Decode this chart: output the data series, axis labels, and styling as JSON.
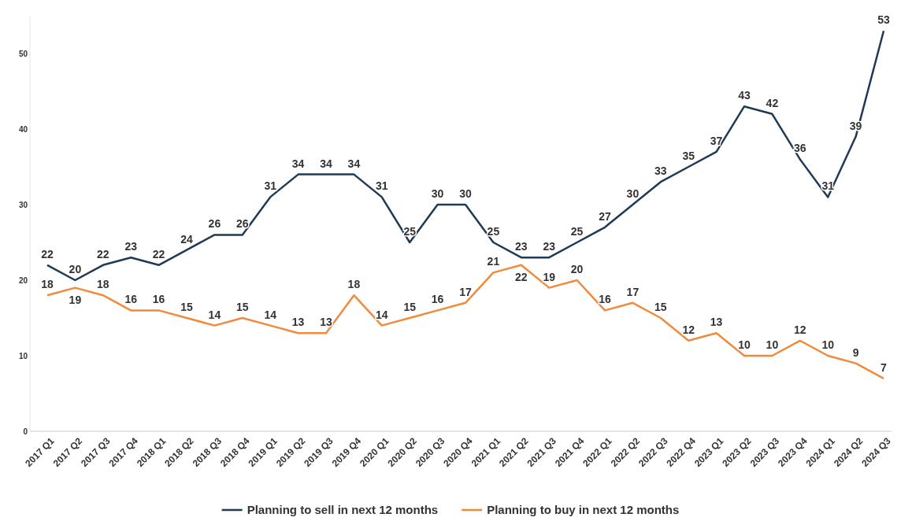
{
  "chart_data": {
    "type": "line",
    "categories": [
      "2017 Q1",
      "2017 Q2",
      "2017 Q3",
      "2017 Q4",
      "2018 Q1",
      "2018 Q2",
      "2018 Q3",
      "2018 Q4",
      "2019 Q1",
      "2019 Q2",
      "2019 Q3",
      "2019 Q4",
      "2020 Q1",
      "2020 Q2",
      "2020 Q3",
      "2020 Q4",
      "2021 Q1",
      "2021 Q2",
      "2021 Q3",
      "2021 Q4",
      "2022 Q1",
      "2022 Q2",
      "2022 Q3",
      "2022 Q4",
      "2023 Q1",
      "2023 Q2",
      "2023 Q3",
      "2023 Q4",
      "2024 Q1",
      "2024 Q2",
      "2024 Q3"
    ],
    "series": [
      {
        "name": "Planning to sell in next 12 months",
        "color": "#1f3a56",
        "values": [
          22,
          20,
          22,
          23,
          22,
          24,
          26,
          26,
          31,
          34,
          34,
          34,
          31,
          25,
          30,
          30,
          25,
          23,
          23,
          25,
          27,
          30,
          33,
          35,
          37,
          43,
          42,
          36,
          31,
          39,
          53
        ]
      },
      {
        "name": "Planning to buy in next 12 months",
        "color": "#f28a3c",
        "values": [
          18,
          19,
          18,
          16,
          16,
          15,
          14,
          15,
          14,
          13,
          13,
          18,
          14,
          15,
          16,
          17,
          21,
          22,
          19,
          20,
          16,
          17,
          15,
          12,
          13,
          10,
          10,
          12,
          10,
          9,
          7
        ]
      }
    ],
    "ylim": [
      0,
      55
    ],
    "yticks": [
      0,
      10,
      20,
      30,
      40,
      50
    ],
    "grid": false,
    "legend": "bottom",
    "data_labels": true,
    "marker": "none",
    "line_style": "solid"
  }
}
